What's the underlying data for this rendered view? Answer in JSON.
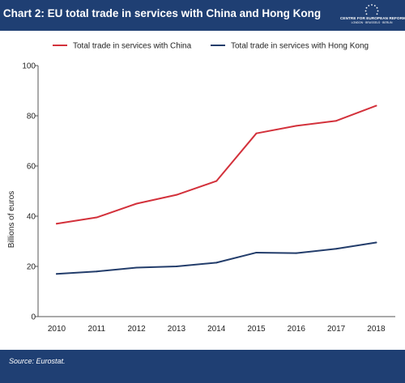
{
  "header": {
    "title": "Chart 2: EU total trade in services with China and Hong Kong",
    "logo_name": "CENTRE FOR EUROPEAN REFORM",
    "logo_cities": "LONDON · BRUSSELS · BERLIN"
  },
  "footer": {
    "source": "Source: Eurostat."
  },
  "colors": {
    "header_bg": "#1f3f73",
    "china": "#d3313b",
    "hongkong": "#233d6b"
  },
  "chart_data": {
    "type": "line",
    "ylabel": "Billions of euros",
    "xlabel": "",
    "ylim": [
      0,
      100
    ],
    "yticks": [
      0,
      20,
      40,
      60,
      80,
      100
    ],
    "x": [
      "2010",
      "2011",
      "2012",
      "2013",
      "2014",
      "2015",
      "2016",
      "2017",
      "2018"
    ],
    "legend_position": "top",
    "grid": false,
    "series": [
      {
        "name": "Total trade in services with China",
        "color": "#d3313b",
        "values": [
          37,
          39.5,
          45,
          48.5,
          54,
          73,
          76,
          78,
          84
        ]
      },
      {
        "name": "Total trade in services with Hong Kong",
        "color": "#233d6b",
        "values": [
          17,
          18,
          19.5,
          20,
          21.5,
          25.5,
          25.3,
          27,
          29.5
        ]
      }
    ]
  }
}
